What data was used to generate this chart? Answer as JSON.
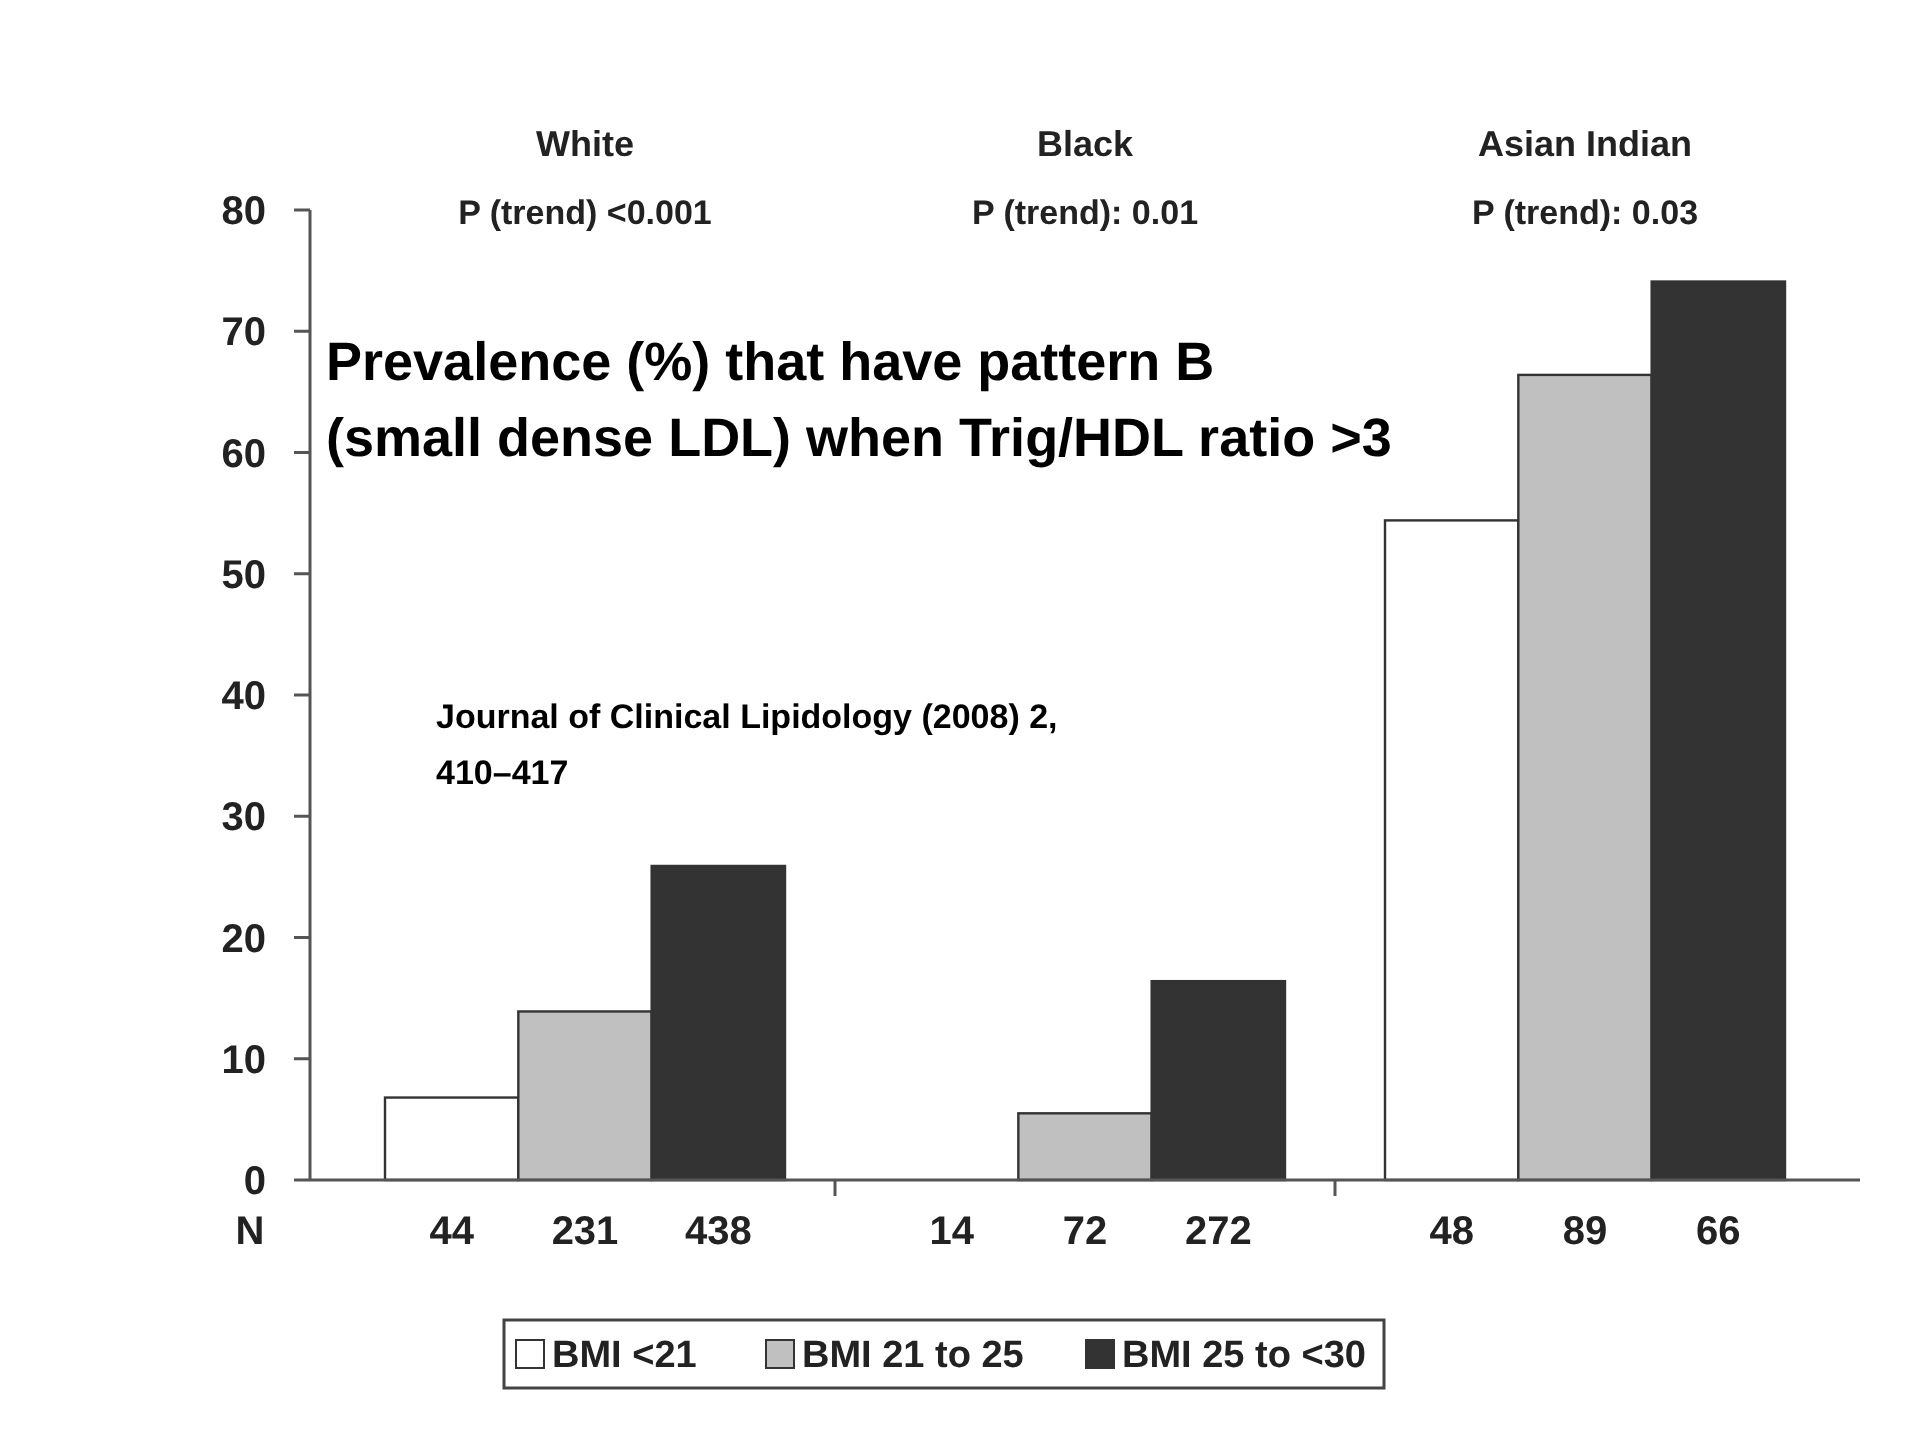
{
  "chart_data": {
    "type": "bar",
    "categories": [
      "White",
      "Black",
      "Asian Indian"
    ],
    "series": [
      {
        "name": "BMI <21",
        "color": "#ffffff",
        "values": [
          6.8,
          0,
          54.4
        ]
      },
      {
        "name": "BMI 21 to 25",
        "color": "#c0c0c0",
        "values": [
          13.9,
          5.5,
          66.4
        ]
      },
      {
        "name": "BMI 25 to <30",
        "color": "#333333",
        "values": [
          25.9,
          16.4,
          74.1
        ]
      }
    ],
    "ylim": [
      0,
      80
    ],
    "yticks": [
      0,
      10,
      20,
      30,
      40,
      50,
      60,
      70,
      80
    ],
    "grid": false,
    "legend": "bottom",
    "annotations": [
      "P (trend) <0.001",
      "P (trend): 0.01",
      "P (trend): 0.03",
      "Prevalence (%)  that have pattern B\n(small dense LDL) when Trig/HDL ratio >3",
      "Journal of Clinical Lipidology (2008) 2,\n410–417",
      "N",
      "44",
      "231",
      "438",
      "14",
      "72",
      "272",
      "48",
      "89",
      "66"
    ]
  }
}
